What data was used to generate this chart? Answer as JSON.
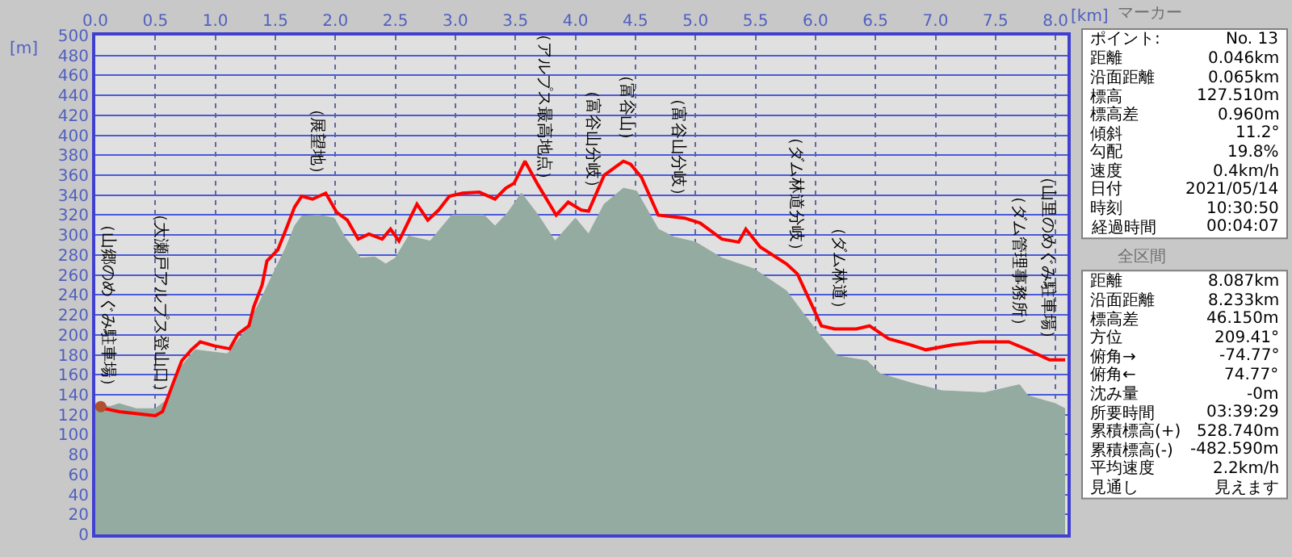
{
  "chart_data": [
    {
      "type": "line",
      "xlabel": "[km]",
      "ylabel": "[m]",
      "xlim": [
        0,
        8.1
      ],
      "ylim": [
        0,
        500
      ],
      "xticks": [
        {
          "value": 0,
          "label": "0.0"
        },
        0.5,
        {
          "value": 1,
          "label": "1.0"
        },
        1.5,
        {
          "value": 2,
          "label": "2.0"
        },
        2.5,
        {
          "value": 3,
          "label": "3.0"
        },
        3.5,
        {
          "value": 4,
          "label": "4.0"
        },
        4.5,
        {
          "value": 5,
          "label": "5.0"
        },
        5.5,
        {
          "value": 6,
          "label": "6.0"
        },
        6.5,
        {
          "value": 7,
          "label": "7.0"
        },
        7.5,
        {
          "value": 8,
          "label": "8.0"
        }
      ],
      "yticks": [
        0,
        20,
        40,
        60,
        80,
        100,
        120,
        140,
        160,
        180,
        200,
        220,
        240,
        260,
        280,
        300,
        320,
        340,
        360,
        380,
        400,
        420,
        440,
        460,
        480,
        500
      ],
      "grid": true,
      "series": [
        {
          "type": "area",
          "color": "#93aba0",
          "x": [
            0,
            0.12,
            0.2,
            0.34,
            0.5,
            0.61,
            0.72,
            0.83,
            1.1,
            1.23,
            1.37,
            1.48,
            1.59,
            1.66,
            1.72,
            1.86,
            1.99,
            2.08,
            2.21,
            2.33,
            2.42,
            2.5,
            2.61,
            2.79,
            2.97,
            3.24,
            3.33,
            3.44,
            3.55,
            3.69,
            3.83,
            4.0,
            4.11,
            4.24,
            4.4,
            4.51,
            4.69,
            4.82,
            5.0,
            5.22,
            5.49,
            5.76,
            5.89,
            6.03,
            6.18,
            6.43,
            6.54,
            6.79,
            7.05,
            7.41,
            7.59,
            7.7,
            7.77,
            8.0,
            8.08
          ],
          "values": [
            131,
            128,
            131,
            126,
            126,
            136,
            169,
            185,
            181,
            201,
            233,
            261,
            288,
            309,
            319,
            320,
            317,
            298,
            277,
            278,
            271,
            277,
            299,
            294,
            320,
            320,
            309,
            323,
            342,
            320,
            294,
            317,
            301,
            331,
            347,
            344,
            306,
            298,
            293,
            277,
            266,
            244,
            223,
            201,
            179,
            174,
            161,
            152,
            144,
            142,
            147,
            150,
            139,
            131,
            126
          ]
        },
        {
          "type": "line",
          "color": "#ff0000",
          "x": [
            0,
            0.2,
            0.5,
            0.56,
            0.65,
            0.72,
            0.8,
            0.875,
            0.99,
            1.12,
            1.19,
            1.28,
            1.32,
            1.39,
            1.43,
            1.52,
            1.59,
            1.66,
            1.72,
            1.81,
            1.92,
            2.01,
            2.1,
            2.19,
            2.28,
            2.39,
            2.46,
            2.53,
            2.68,
            2.77,
            2.86,
            2.95,
            3.06,
            3.2,
            3.33,
            3.42,
            3.49,
            3.58,
            3.69,
            3.84,
            3.94,
            4.05,
            4.11,
            4.24,
            4.4,
            4.46,
            4.55,
            4.69,
            4.91,
            5.04,
            5.22,
            5.36,
            5.42,
            5.54,
            5.76,
            5.85,
            6.05,
            6.16,
            6.34,
            6.45,
            6.61,
            6.79,
            6.92,
            7.14,
            7.37,
            7.61,
            7.77,
            7.95,
            8.08
          ],
          "values": [
            128,
            123,
            119,
            123,
            152,
            174,
            185,
            193,
            189,
            186,
            201,
            209,
            228,
            250,
            274,
            285,
            306,
            328,
            339,
            336,
            342,
            323,
            315,
            296,
            301,
            296,
            306,
            294,
            331,
            315,
            325,
            339,
            342,
            343,
            336,
            347,
            352,
            374,
            350,
            320,
            333,
            325,
            324,
            360,
            374,
            371,
            358,
            320,
            317,
            312,
            296,
            293,
            306,
            288,
            271,
            261,
            209,
            206,
            206,
            209,
            196,
            190,
            185,
            190,
            193,
            193,
            185,
            175,
            175
          ]
        },
        {
          "type": "scatter",
          "color": "#b05030",
          "marker": "circle",
          "x": [
            0.046
          ],
          "values": [
            128
          ]
        }
      ],
      "annotations": [
        {
          "text": "（山郷のめぐみ駐車場）",
          "x": 0,
          "y": 128
        },
        {
          "text": "（大瀬戸アルプス登山口）",
          "x": 0.55,
          "y": 122
        },
        {
          "text": "（展望地）",
          "x": 1.85,
          "y": 340
        },
        {
          "text": "（アルプス最高地点）",
          "x": 3.58,
          "y": 374
        },
        {
          "text": "（富谷山分岐）",
          "x": 4.15,
          "y": 326
        },
        {
          "text": "（富谷山）",
          "x": 4.43,
          "y": 374
        },
        {
          "text": "（富谷山分岐）",
          "x": 4.85,
          "y": 318
        },
        {
          "text": "（ダム林道分岐）",
          "x": 5.83,
          "y": 263
        },
        {
          "text": "（ダム林道）",
          "x": 6.2,
          "y": 206
        },
        {
          "text": "（ダム管理事務所）",
          "x": 7.7,
          "y": 188
        },
        {
          "text": "（山里のめぐみ駐車場）",
          "x": 8.05,
          "y": 175
        }
      ]
    },
    {
      "type": "other",
      "title": "マーカー",
      "annotations": [
        "ポイント:",
        "No. 13",
        "距離",
        "0.046km",
        "沿面距離",
        "0.065km",
        "標高",
        "127.510m",
        "標高差",
        "0.960m",
        "傾斜",
        "11.2°",
        "勾配",
        "19.8%",
        "速度",
        "0.4km/h",
        "日付",
        "2021/05/14",
        "時刻",
        "10:30:50",
        "経過時間",
        "00:04:07"
      ]
    },
    {
      "type": "other",
      "title": "全区間",
      "annotations": [
        "距離",
        "8.087km",
        "沿面距離",
        "8.233km",
        "標高差",
        "46.150m",
        "方位",
        "209.41°",
        "俯角→",
        "-74.77°",
        "俯角←",
        "74.77°",
        "沈み量",
        "-0m",
        "所要時間",
        "03:39:29",
        "累積標高(+)",
        "528.740m",
        "累積標高(-)",
        "-482.590m",
        "平均速度",
        "2.2km/h",
        "見通し",
        "見えます"
      ]
    }
  ]
}
